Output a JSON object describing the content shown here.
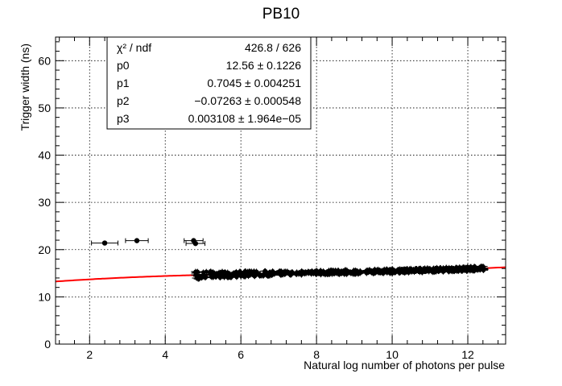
{
  "chart_data": {
    "type": "scatter",
    "title": "PB10",
    "xlabel": "Natural log number of photons per pulse",
    "ylabel": "Trigger width (ns)",
    "xlim": [
      1.1,
      13.0
    ],
    "ylim": [
      0,
      65
    ],
    "x_ticks": [
      2,
      4,
      6,
      8,
      10,
      12
    ],
    "y_ticks": [
      0,
      10,
      20,
      30,
      40,
      50,
      60
    ],
    "grid": true,
    "fit_color": "#ff0000",
    "marker_color": "#000000",
    "stats_box": {
      "placement": "top-left",
      "rows": [
        {
          "name": "χ² / ndf",
          "value": "426.8 / 626"
        },
        {
          "name": "p0",
          "value": "12.56 ± 0.1226"
        },
        {
          "name": "p1",
          "value": "0.7045 ± 0.004251"
        },
        {
          "name": "p2",
          "value": "−0.07263 ± 0.000548"
        },
        {
          "name": "p3",
          "value": "0.003108 ± 1.964e−05"
        }
      ]
    },
    "fit": {
      "function": "p0 + p1*x + p2*x^2 + p3*x^3",
      "params": [
        12.56,
        0.7045,
        -0.07263,
        0.003108
      ],
      "x_range": [
        1.1,
        13.0
      ]
    },
    "outliers": [
      {
        "x": 2.4,
        "y": 21.4,
        "xerr": 0.35
      },
      {
        "x": 3.25,
        "y": 21.9,
        "xerr": 0.3
      },
      {
        "x": 4.75,
        "y": 21.9,
        "xerr": 0.25
      },
      {
        "x": 4.8,
        "y": 21.3,
        "xerr": 0.25
      }
    ],
    "cluster": {
      "description_points": "dense points following the fit curve",
      "x_range": [
        4.8,
        12.45
      ],
      "n": 620,
      "x_err": 0.12,
      "y_err": 0.6
    }
  }
}
